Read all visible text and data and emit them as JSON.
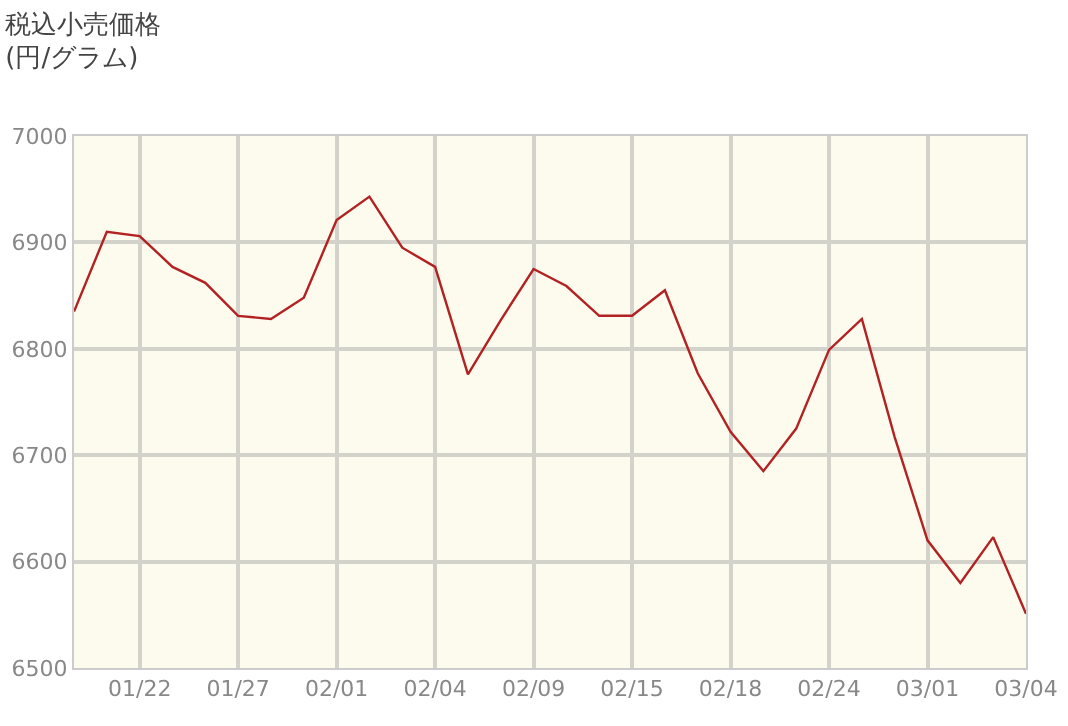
{
  "chart_data": {
    "type": "line",
    "title": "税込小売価格",
    "subtitle": "(円/グラム)",
    "categories": [
      null,
      null,
      "01/22",
      null,
      null,
      "01/27",
      null,
      null,
      "02/01",
      null,
      null,
      "02/04",
      null,
      null,
      "02/09",
      null,
      null,
      "02/15",
      null,
      null,
      "02/18",
      null,
      null,
      "02/24",
      null,
      null,
      "03/01",
      null,
      null,
      "03/04"
    ],
    "series": [
      {
        "color": "#b22222",
        "values": [
          6835,
          6910,
          6906,
          6877,
          6862,
          6831,
          6828,
          6848,
          6921,
          6943,
          6895,
          6877,
          6776,
          6827,
          6875,
          6859,
          6831,
          6831,
          6855,
          6777,
          6722,
          6685,
          6725,
          6799,
          6828,
          6717,
          6620,
          6580,
          6623,
          6551
        ]
      }
    ],
    "ylim": [
      6500,
      7000
    ],
    "yticks": [
      6500,
      6600,
      6700,
      6800,
      6900,
      7000
    ],
    "grid": true,
    "legend": false,
    "marker": "none",
    "line_style": "solid"
  }
}
